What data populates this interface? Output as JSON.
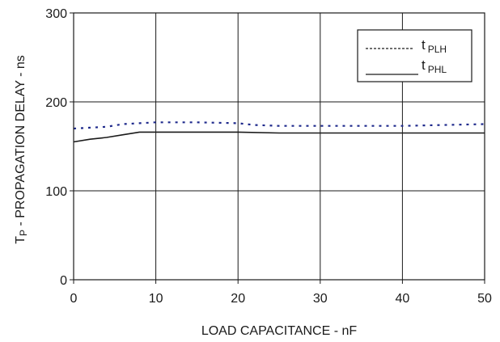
{
  "chart_data": {
    "type": "line",
    "title": "",
    "xlabel": "LOAD CAPACITANCE - nF",
    "ylabel_main": "T",
    "ylabel_sub": "P",
    "ylabel_rest": " - PROPAGATION DELAY - ns",
    "xlim": [
      0,
      50
    ],
    "ylim": [
      0,
      300
    ],
    "x_ticks": [
      0,
      10,
      20,
      30,
      40,
      50
    ],
    "y_ticks": [
      0,
      100,
      200,
      300
    ],
    "grid": true,
    "legend_position": "top-right",
    "series": [
      {
        "name": "PLH",
        "legend_prefix": "t",
        "color": "#1f2a8c",
        "style": "dotted",
        "x": [
          0,
          2,
          4,
          6,
          8,
          10,
          15,
          20,
          22,
          25,
          30,
          35,
          40,
          45,
          50
        ],
        "y": [
          170,
          171,
          172,
          175,
          176,
          177,
          177,
          176,
          174,
          173,
          173,
          173,
          173,
          174,
          175
        ]
      },
      {
        "name": "PHL",
        "legend_prefix": "t",
        "color": "#1a1a1a",
        "style": "solid",
        "x": [
          0,
          2,
          4,
          6,
          8,
          10,
          15,
          20,
          25,
          30,
          35,
          40,
          45,
          50
        ],
        "y": [
          155,
          158,
          160,
          163,
          166,
          166,
          166,
          166,
          165,
          165,
          165,
          165,
          165,
          165
        ]
      }
    ]
  }
}
